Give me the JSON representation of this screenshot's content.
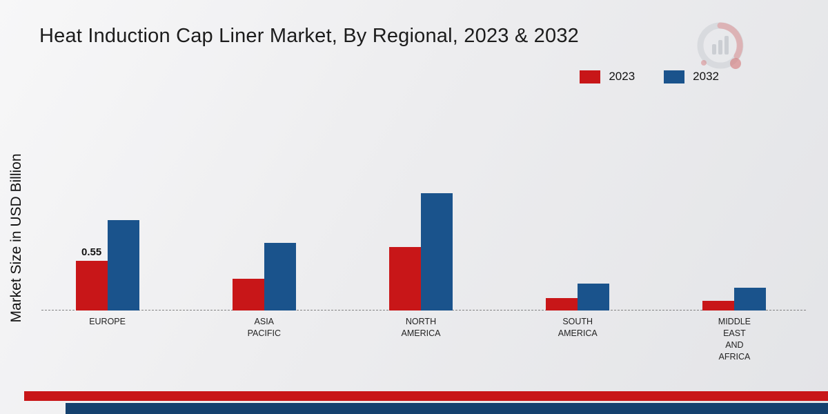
{
  "colors": {
    "footer_red": "#c81618",
    "footer_navy": "#15416e",
    "series_2023": "#c81618",
    "series_2032": "#1a538c",
    "background": "#ececee"
  },
  "chart_data": {
    "type": "bar",
    "title": "Heat Induction Cap Liner Market, By Regional, 2023 & 2032",
    "xlabel": "",
    "ylabel": "Market Size in USD Billion",
    "ylim": [
      0,
      1.5
    ],
    "grid": false,
    "legend_position": "top-right",
    "baseline_style": "dashed",
    "categories": [
      "EUROPE",
      "ASIA\nPACIFIC",
      "NORTH\nAMERICA",
      "SOUTH\nAMERICA",
      "MIDDLE\nEAST\nAND\nAFRICA"
    ],
    "series": [
      {
        "name": "2023",
        "color": "#c81618",
        "values": [
          0.55,
          0.35,
          0.7,
          0.14,
          0.11
        ],
        "data_labels": [
          "0.55",
          "",
          "",
          "",
          ""
        ]
      },
      {
        "name": "2032",
        "color": "#1a538c",
        "values": [
          1.0,
          0.75,
          1.3,
          0.3,
          0.25
        ],
        "data_labels": [
          "",
          "",
          "",
          "",
          ""
        ]
      }
    ]
  }
}
